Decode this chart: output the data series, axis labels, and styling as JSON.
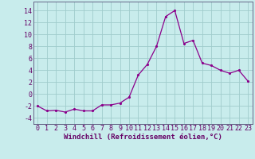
{
  "x": [
    0,
    1,
    2,
    3,
    4,
    5,
    6,
    7,
    8,
    9,
    10,
    11,
    12,
    13,
    14,
    15,
    16,
    17,
    18,
    19,
    20,
    21,
    22,
    23
  ],
  "y": [
    -2.0,
    -2.8,
    -2.7,
    -3.0,
    -2.5,
    -2.8,
    -2.8,
    -1.8,
    -1.8,
    -1.5,
    -0.5,
    3.2,
    5.0,
    8.0,
    13.0,
    14.0,
    8.5,
    9.0,
    5.2,
    4.8,
    4.0,
    3.5,
    4.0,
    2.2
  ],
  "line_color": "#8B008B",
  "marker": ".",
  "bg_color": "#c8ecec",
  "grid_color": "#a0cccc",
  "xlabel": "Windchill (Refroidissement éolien,°C)",
  "xlim": [
    -0.5,
    23.5
  ],
  "ylim": [
    -5,
    15.5
  ],
  "yticks": [
    -4,
    -2,
    0,
    2,
    4,
    6,
    8,
    10,
    12,
    14
  ],
  "xticks": [
    0,
    1,
    2,
    3,
    4,
    5,
    6,
    7,
    8,
    9,
    10,
    11,
    12,
    13,
    14,
    15,
    16,
    17,
    18,
    19,
    20,
    21,
    22,
    23
  ],
  "xlabel_fontsize": 6.5,
  "tick_fontsize": 6.0,
  "line_width": 0.9,
  "marker_size": 2.5
}
